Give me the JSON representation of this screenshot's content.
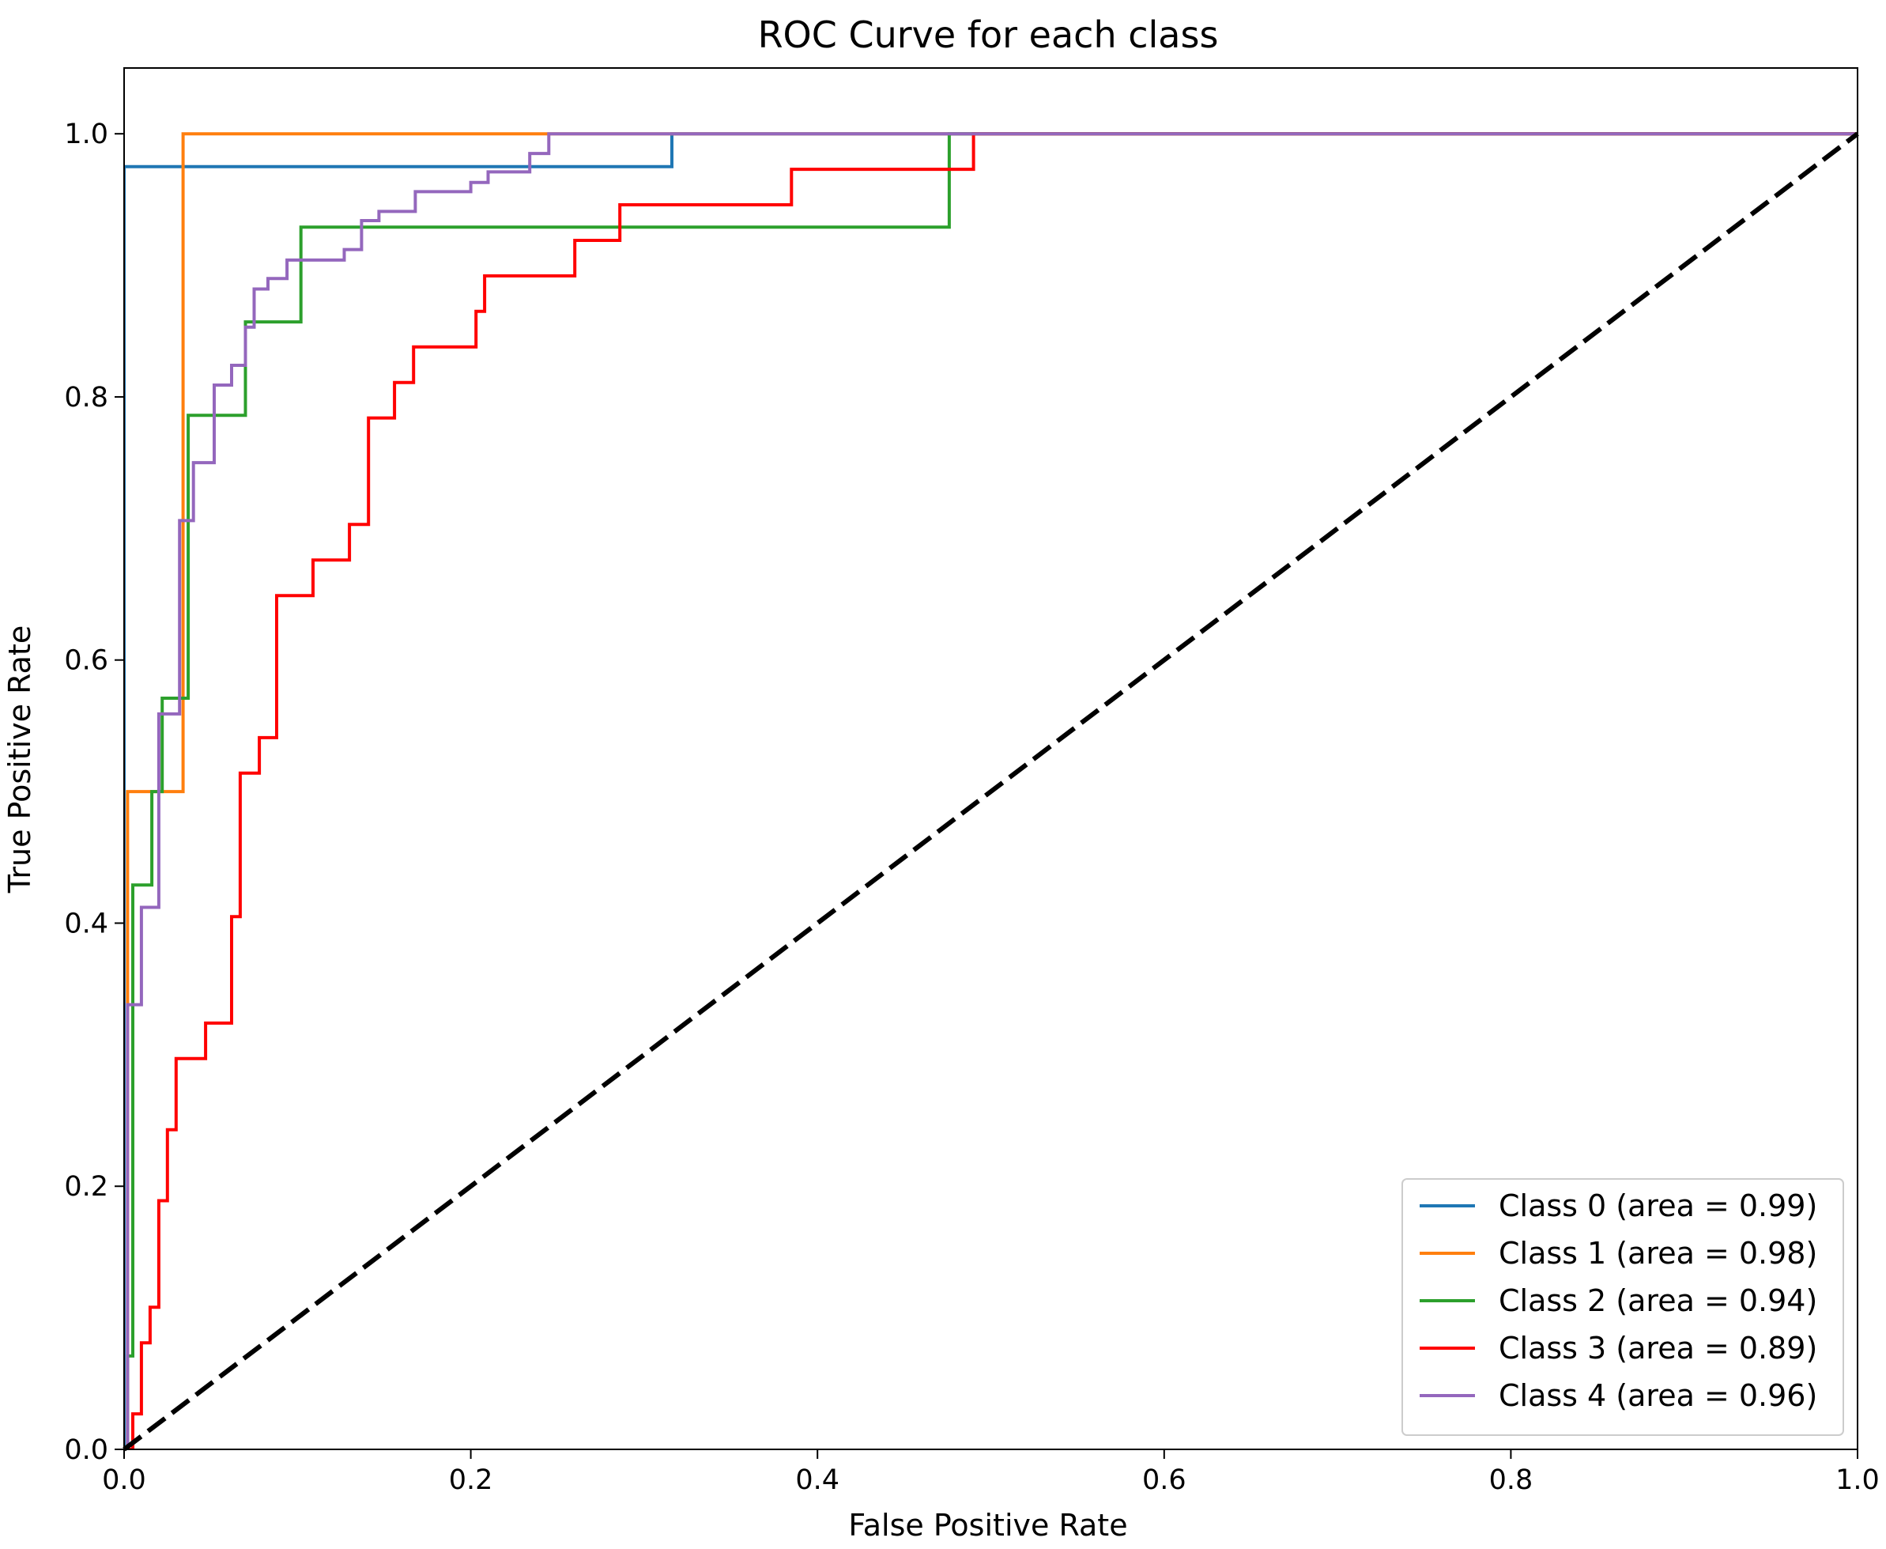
{
  "chart_data": {
    "type": "line",
    "title": "ROC Curve for each class",
    "xlabel": "False Positive Rate",
    "ylabel": "True Positive Rate",
    "xlim": [
      0.0,
      1.0
    ],
    "ylim": [
      0.0,
      1.05
    ],
    "xticks": [
      "0.0",
      "0.2",
      "0.4",
      "0.6",
      "0.8",
      "1.0"
    ],
    "xtick_values": [
      0.0,
      0.2,
      0.4,
      0.6,
      0.8,
      1.0
    ],
    "yticks": [
      "0.0",
      "0.2",
      "0.4",
      "0.6",
      "0.8",
      "1.0"
    ],
    "ytick_values": [
      0.0,
      0.2,
      0.4,
      0.6,
      0.8,
      1.0
    ],
    "grid": false,
    "legend_position": "lower-right",
    "diagonal": {
      "color": "#000000",
      "style": "dashed",
      "points": [
        [
          0,
          0
        ],
        [
          1,
          1
        ]
      ]
    },
    "series": [
      {
        "name": "Class 0 (area = 0.99)",
        "color": "#1f77b4",
        "points": [
          [
            0.0,
            0.0
          ],
          [
            0.0,
            0.975
          ],
          [
            0.316,
            0.975
          ],
          [
            0.316,
            1.0
          ],
          [
            1.0,
            1.0
          ]
        ]
      },
      {
        "name": "Class 1 (area = 0.98)",
        "color": "#ff7f0e",
        "points": [
          [
            0.0,
            0.0
          ],
          [
            0.002,
            0.0
          ],
          [
            0.002,
            0.5
          ],
          [
            0.034,
            0.5
          ],
          [
            0.034,
            1.0
          ],
          [
            1.0,
            1.0
          ]
        ]
      },
      {
        "name": "Class 2 (area = 0.94)",
        "color": "#2ca02c",
        "points": [
          [
            0.0,
            0.0
          ],
          [
            0.002,
            0.0
          ],
          [
            0.002,
            0.071
          ],
          [
            0.005,
            0.071
          ],
          [
            0.005,
            0.429
          ],
          [
            0.016,
            0.429
          ],
          [
            0.016,
            0.5
          ],
          [
            0.022,
            0.5
          ],
          [
            0.022,
            0.571
          ],
          [
            0.037,
            0.571
          ],
          [
            0.037,
            0.786
          ],
          [
            0.07,
            0.786
          ],
          [
            0.07,
            0.857
          ],
          [
            0.102,
            0.857
          ],
          [
            0.102,
            0.929
          ],
          [
            0.476,
            0.929
          ],
          [
            0.476,
            1.0
          ],
          [
            1.0,
            1.0
          ]
        ]
      },
      {
        "name": "Class 3 (area = 0.89)",
        "color": "#ff0000",
        "points": [
          [
            0.0,
            0.0
          ],
          [
            0.005,
            0.0
          ],
          [
            0.005,
            0.027
          ],
          [
            0.01,
            0.027
          ],
          [
            0.01,
            0.081
          ],
          [
            0.015,
            0.081
          ],
          [
            0.015,
            0.108
          ],
          [
            0.02,
            0.108
          ],
          [
            0.02,
            0.189
          ],
          [
            0.025,
            0.189
          ],
          [
            0.025,
            0.243
          ],
          [
            0.03,
            0.243
          ],
          [
            0.03,
            0.297
          ],
          [
            0.047,
            0.297
          ],
          [
            0.047,
            0.324
          ],
          [
            0.062,
            0.324
          ],
          [
            0.062,
            0.405
          ],
          [
            0.067,
            0.405
          ],
          [
            0.067,
            0.514
          ],
          [
            0.078,
            0.514
          ],
          [
            0.078,
            0.541
          ],
          [
            0.088,
            0.541
          ],
          [
            0.088,
            0.649
          ],
          [
            0.109,
            0.649
          ],
          [
            0.109,
            0.676
          ],
          [
            0.13,
            0.676
          ],
          [
            0.13,
            0.703
          ],
          [
            0.141,
            0.703
          ],
          [
            0.141,
            0.784
          ],
          [
            0.156,
            0.784
          ],
          [
            0.156,
            0.811
          ],
          [
            0.167,
            0.811
          ],
          [
            0.167,
            0.838
          ],
          [
            0.203,
            0.838
          ],
          [
            0.203,
            0.865
          ],
          [
            0.208,
            0.865
          ],
          [
            0.208,
            0.892
          ],
          [
            0.26,
            0.892
          ],
          [
            0.26,
            0.919
          ],
          [
            0.286,
            0.919
          ],
          [
            0.286,
            0.946
          ],
          [
            0.385,
            0.946
          ],
          [
            0.385,
            0.973
          ],
          [
            0.49,
            0.973
          ],
          [
            0.49,
            1.0
          ],
          [
            1.0,
            1.0
          ]
        ]
      },
      {
        "name": "Class 4 (area = 0.96)",
        "color": "#9467bd",
        "points": [
          [
            0.0,
            0.0
          ],
          [
            0.002,
            0.0
          ],
          [
            0.002,
            0.338
          ],
          [
            0.01,
            0.338
          ],
          [
            0.01,
            0.412
          ],
          [
            0.02,
            0.412
          ],
          [
            0.02,
            0.559
          ],
          [
            0.032,
            0.559
          ],
          [
            0.032,
            0.706
          ],
          [
            0.04,
            0.706
          ],
          [
            0.04,
            0.75
          ],
          [
            0.052,
            0.75
          ],
          [
            0.052,
            0.809
          ],
          [
            0.062,
            0.809
          ],
          [
            0.062,
            0.824
          ],
          [
            0.07,
            0.824
          ],
          [
            0.07,
            0.853
          ],
          [
            0.075,
            0.853
          ],
          [
            0.075,
            0.882
          ],
          [
            0.083,
            0.882
          ],
          [
            0.083,
            0.89
          ],
          [
            0.094,
            0.89
          ],
          [
            0.094,
            0.904
          ],
          [
            0.127,
            0.904
          ],
          [
            0.127,
            0.912
          ],
          [
            0.137,
            0.912
          ],
          [
            0.137,
            0.934
          ],
          [
            0.147,
            0.934
          ],
          [
            0.147,
            0.941
          ],
          [
            0.168,
            0.941
          ],
          [
            0.168,
            0.956
          ],
          [
            0.2,
            0.956
          ],
          [
            0.2,
            0.963
          ],
          [
            0.21,
            0.963
          ],
          [
            0.21,
            0.971
          ],
          [
            0.234,
            0.971
          ],
          [
            0.234,
            0.985
          ],
          [
            0.245,
            0.985
          ],
          [
            0.245,
            1.0
          ],
          [
            1.0,
            1.0
          ]
        ]
      }
    ]
  }
}
